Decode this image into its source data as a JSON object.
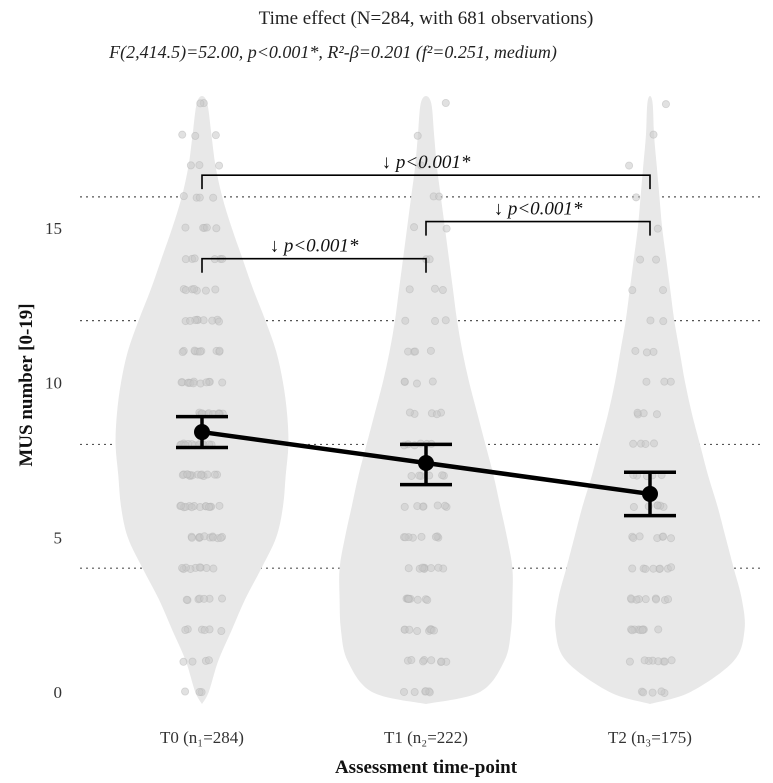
{
  "chart_data": {
    "type": "violin",
    "title": "Time effect (N=284, with 681 observations)",
    "subtitle": "F(2,414.5)=52.00, p<0.001*, R²-β=0.201 (f²=0.251, medium)",
    "xlabel": "Assessment time-point",
    "ylabel": "MUS number [0-19]",
    "ylim": [
      0,
      19
    ],
    "yticks": [
      0,
      5,
      10,
      15
    ],
    "gridlines_y": [
      4,
      8,
      12,
      16
    ],
    "grid": "horizontal dotted",
    "categories": [
      "T0 (n₁=284)",
      "T1 (n₂=222)",
      "T2 (n₃=175)"
    ],
    "means": [
      8.4,
      7.4,
      6.4
    ],
    "ci_lower": [
      7.9,
      6.7,
      5.7
    ],
    "ci_upper": [
      8.9,
      8.0,
      7.1
    ],
    "violin_points": [
      0,
      1,
      2,
      3,
      4,
      5,
      6,
      7,
      8,
      9,
      10,
      11,
      12,
      13,
      14,
      15,
      16,
      17,
      18,
      19
    ],
    "violin_density": [
      [
        0.05,
        0.12,
        0.22,
        0.32,
        0.44,
        0.55,
        0.6,
        0.62,
        0.64,
        0.63,
        0.6,
        0.55,
        0.47,
        0.38,
        0.3,
        0.22,
        0.15,
        0.1,
        0.07,
        0.04
      ],
      [
        0.4,
        0.58,
        0.63,
        0.64,
        0.64,
        0.6,
        0.55,
        0.5,
        0.44,
        0.38,
        0.32,
        0.27,
        0.23,
        0.2,
        0.17,
        0.14,
        0.11,
        0.08,
        0.06,
        0.04
      ],
      [
        0.3,
        0.62,
        0.7,
        0.68,
        0.62,
        0.56,
        0.5,
        0.43,
        0.37,
        0.31,
        0.26,
        0.22,
        0.18,
        0.15,
        0.12,
        0.09,
        0.07,
        0.05,
        0.03,
        0.02
      ]
    ],
    "jitter_counts": [
      [
        3,
        4,
        6,
        7,
        9,
        12,
        14,
        14,
        14,
        13,
        12,
        10,
        9,
        7,
        6,
        5,
        4,
        3,
        3,
        2
      ],
      [
        6,
        8,
        9,
        9,
        9,
        8,
        7,
        6,
        6,
        5,
        4,
        4,
        3,
        3,
        2,
        2,
        2,
        1,
        1,
        1
      ],
      [
        5,
        8,
        9,
        9,
        8,
        7,
        6,
        5,
        4,
        4,
        3,
        3,
        2,
        2,
        2,
        1,
        1,
        1,
        1,
        1
      ]
    ],
    "comparisons": [
      {
        "from": 0,
        "to": 1,
        "label": "↓ p<0.001*",
        "y": 14.0
      },
      {
        "from": 1,
        "to": 2,
        "label": "↓ p<0.001*",
        "y": 15.2
      },
      {
        "from": 0,
        "to": 2,
        "label": "↓ p<0.001*",
        "y": 16.7
      }
    ],
    "colors": {
      "violin": "#e8e8e8",
      "points": "#c8c8c8",
      "mean_line": "#000000",
      "grid": "#555555"
    }
  }
}
